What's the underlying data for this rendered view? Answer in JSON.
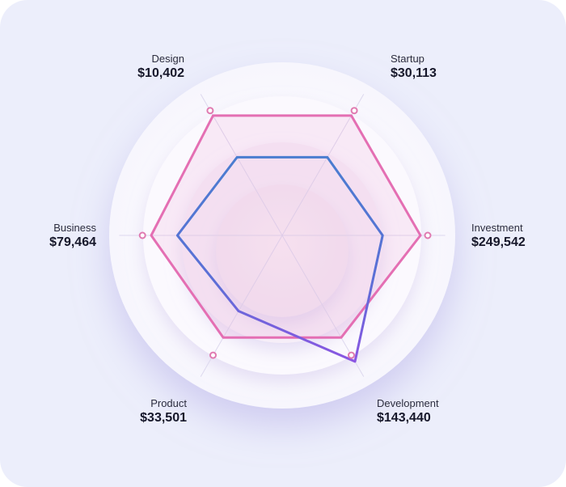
{
  "chart_data": {
    "type": "radar",
    "axes": [
      {
        "name": "Startup",
        "value": "$30,113"
      },
      {
        "name": "Investment",
        "value": "$249,542"
      },
      {
        "name": "Development",
        "value": "$143,440"
      },
      {
        "name": "Product",
        "value": "$33,501"
      },
      {
        "name": "Business",
        "value": "$79,464"
      },
      {
        "name": "Design",
        "value": "$10,402"
      }
    ],
    "series": [
      {
        "color": "#e46fb3",
        "values": [
          0.95,
          0.95,
          0.81,
          0.81,
          0.9,
          0.95
        ]
      },
      {
        "color": "#4f7ad2",
        "values": [
          0.62,
          0.69,
          1.0,
          0.6,
          0.72,
          0.62
        ]
      }
    ],
    "markers": {
      "color": "#e07ab0",
      "values": [
        0.99,
        1.0,
        0.95,
        0.95,
        0.96,
        0.99
      ]
    },
    "grid": true
  }
}
